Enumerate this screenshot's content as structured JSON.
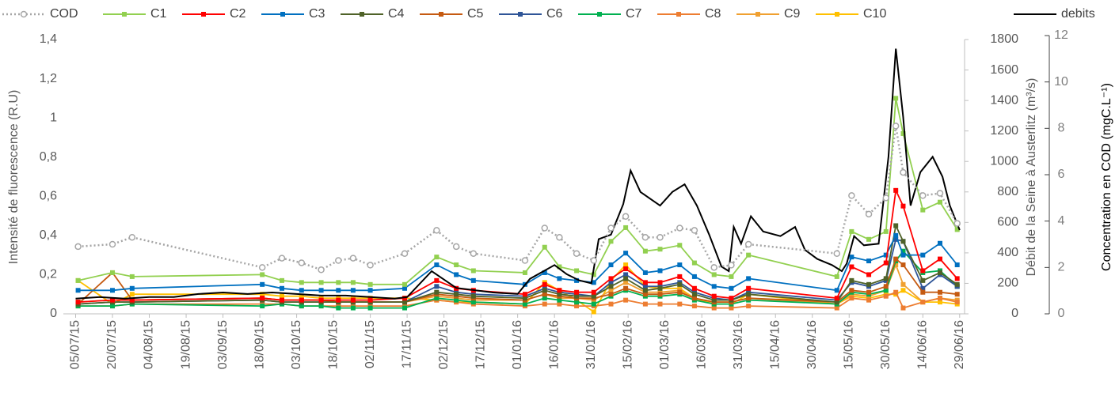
{
  "chart_data": {
    "type": "line",
    "y_label": "Intensité de fluorescence (R.U)",
    "y2_label": "Débit de la Seine à Austerlitz (m³/s)",
    "y3_label": "Concentration en COD (mgC.L⁻¹)",
    "legend": "top",
    "xlim": [
      "2015-06-30",
      "2016-07-01"
    ],
    "xticks": [
      {
        "value": "2015-07-05",
        "label": "05/07/15"
      },
      {
        "value": "2015-07-20",
        "label": "20/07/15"
      },
      {
        "value": "2015-08-04",
        "label": "04/08/15"
      },
      {
        "value": "2015-08-19",
        "label": "19/08/15"
      },
      {
        "value": "2015-09-03",
        "label": "03/09/15"
      },
      {
        "value": "2015-09-18",
        "label": "18/09/15"
      },
      {
        "value": "2015-10-03",
        "label": "03/10/15"
      },
      {
        "value": "2015-10-18",
        "label": "18/10/15"
      },
      {
        "value": "2015-11-02",
        "label": "02/11/15"
      },
      {
        "value": "2015-11-17",
        "label": "17/11/15"
      },
      {
        "value": "2015-12-02",
        "label": "02/12/15"
      },
      {
        "value": "2015-12-17",
        "label": "17/12/15"
      },
      {
        "value": "2016-01-01",
        "label": "01/01/16"
      },
      {
        "value": "2016-01-16",
        "label": "16/01/16"
      },
      {
        "value": "2016-01-31",
        "label": "31/01/16"
      },
      {
        "value": "2016-02-15",
        "label": "15/02/16"
      },
      {
        "value": "2016-03-01",
        "label": "01/03/16"
      },
      {
        "value": "2016-03-16",
        "label": "16/03/16"
      },
      {
        "value": "2016-03-31",
        "label": "31/03/16"
      },
      {
        "value": "2016-04-15",
        "label": "15/04/16"
      },
      {
        "value": "2016-04-30",
        "label": "30/04/16"
      },
      {
        "value": "2016-05-15",
        "label": "15/05/16"
      },
      {
        "value": "2016-05-30",
        "label": "30/05/16"
      },
      {
        "value": "2016-06-14",
        "label": "14/06/16"
      },
      {
        "value": "2016-06-29",
        "label": "29/06/16"
      }
    ],
    "ylim": [
      0,
      1.4
    ],
    "yticks": [
      0,
      {
        "value": 0.2,
        "label": "0,2"
      },
      {
        "value": 0.4,
        "label": "0,4"
      },
      {
        "value": 0.6,
        "label": "0,6"
      },
      {
        "value": 0.8,
        "label": "0,8"
      },
      1,
      {
        "value": 1.2,
        "label": "1,2"
      },
      {
        "value": 1.4,
        "label": "1,4"
      }
    ],
    "y2lim": [
      0,
      1800
    ],
    "y2ticks": [
      0,
      200,
      400,
      600,
      800,
      1000,
      1200,
      1400,
      1600,
      1800
    ],
    "y3lim": [
      0,
      12
    ],
    "y3ticks": [
      0,
      2,
      4,
      6,
      8,
      10,
      12
    ],
    "x": [
      "2015-07-06",
      "2015-07-20",
      "2015-07-28",
      "2015-09-19",
      "2015-09-27",
      "2015-10-05",
      "2015-10-13",
      "2015-10-20",
      "2015-10-26",
      "2015-11-02",
      "2015-11-16",
      "2015-11-29",
      "2015-12-07",
      "2015-12-14",
      "2016-01-04",
      "2016-01-12",
      "2016-01-18",
      "2016-01-25",
      "2016-02-01",
      "2016-02-08",
      "2016-02-14",
      "2016-02-22",
      "2016-02-28",
      "2016-03-07",
      "2016-03-13",
      "2016-03-21",
      "2016-03-28",
      "2016-04-04",
      "2016-05-10",
      "2016-05-16",
      "2016-05-23",
      "2016-05-30",
      "2016-06-03",
      "2016-06-06",
      "2016-06-14",
      "2016-06-21",
      "2016-06-28"
    ],
    "series": [
      {
        "name": "COD",
        "color": "#a6a6a6",
        "axis": "y3",
        "values": [
          2.9,
          3.0,
          3.3,
          2.0,
          2.4,
          2.2,
          1.9,
          2.3,
          2.4,
          2.1,
          2.6,
          3.6,
          2.9,
          2.6,
          2.3,
          3.7,
          3.3,
          2.6,
          2.3,
          3.7,
          4.2,
          3.3,
          3.3,
          3.7,
          3.6,
          2.0,
          2.1,
          3.0,
          2.6,
          5.1,
          4.3,
          5.0,
          8.1,
          6.1,
          5.1,
          5.2,
          3.9
        ]
      },
      {
        "name": "C1",
        "color": "#92d050",
        "values": [
          0.17,
          0.21,
          0.19,
          0.2,
          0.17,
          0.16,
          0.16,
          0.16,
          0.16,
          0.15,
          0.15,
          0.29,
          0.25,
          0.22,
          0.21,
          0.34,
          0.24,
          0.22,
          0.2,
          0.37,
          0.44,
          0.32,
          0.33,
          0.35,
          0.26,
          0.2,
          0.19,
          0.3,
          0.19,
          0.42,
          0.38,
          0.42,
          1.1,
          0.92,
          0.53,
          0.57,
          0.43
        ]
      },
      {
        "name": "C2",
        "color": "#ff0000",
        "values": [
          0.06,
          0.07,
          0.07,
          0.08,
          0.07,
          0.07,
          0.07,
          0.07,
          0.07,
          0.07,
          0.08,
          0.17,
          0.13,
          0.12,
          0.1,
          0.15,
          0.12,
          0.11,
          0.11,
          0.18,
          0.23,
          0.16,
          0.16,
          0.19,
          0.13,
          0.09,
          0.08,
          0.13,
          0.08,
          0.24,
          0.2,
          0.26,
          0.63,
          0.55,
          0.22,
          0.28,
          0.18
        ]
      },
      {
        "name": "C3",
        "color": "#0070c0",
        "values": [
          0.12,
          0.12,
          0.13,
          0.15,
          0.13,
          0.12,
          0.12,
          0.12,
          0.12,
          0.12,
          0.13,
          0.25,
          0.2,
          0.17,
          0.15,
          0.21,
          0.18,
          0.17,
          0.16,
          0.25,
          0.31,
          0.21,
          0.22,
          0.25,
          0.19,
          0.14,
          0.13,
          0.18,
          0.12,
          0.29,
          0.27,
          0.3,
          0.4,
          0.3,
          0.3,
          0.36,
          0.25
        ]
      },
      {
        "name": "C4",
        "color": "#4f6228",
        "values": [
          0.05,
          0.06,
          0.06,
          0.07,
          0.06,
          0.06,
          0.06,
          0.06,
          0.06,
          0.06,
          0.06,
          0.11,
          0.1,
          0.09,
          0.08,
          0.12,
          0.1,
          0.09,
          0.09,
          0.14,
          0.18,
          0.12,
          0.13,
          0.15,
          0.1,
          0.07,
          0.07,
          0.1,
          0.06,
          0.17,
          0.15,
          0.18,
          0.45,
          0.37,
          0.17,
          0.21,
          0.15
        ]
      },
      {
        "name": "C5",
        "color": "#c55a11",
        "values": [
          0.05,
          0.21,
          0.07,
          0.08,
          0.07,
          0.07,
          0.07,
          0.06,
          0.06,
          0.06,
          0.06,
          0.1,
          0.09,
          0.08,
          0.07,
          0.1,
          0.09,
          0.08,
          0.08,
          0.1,
          0.13,
          0.1,
          0.1,
          0.11,
          0.08,
          0.06,
          0.06,
          0.08,
          0.06,
          0.12,
          0.11,
          0.14,
          0.28,
          0.25,
          0.11,
          0.11,
          0.1
        ]
      },
      {
        "name": "C6",
        "color": "#2f5597",
        "values": [
          0.05,
          0.06,
          0.06,
          0.07,
          0.06,
          0.06,
          0.06,
          0.06,
          0.06,
          0.06,
          0.06,
          0.14,
          0.11,
          0.1,
          0.09,
          0.13,
          0.11,
          0.1,
          0.09,
          0.16,
          0.2,
          0.14,
          0.14,
          0.16,
          0.11,
          0.08,
          0.07,
          0.11,
          0.07,
          0.16,
          0.14,
          0.17,
          0.38,
          0.37,
          0.13,
          0.2,
          0.14
        ]
      },
      {
        "name": "C7",
        "color": "#00b050",
        "values": [
          0.04,
          0.04,
          0.05,
          0.04,
          0.05,
          0.04,
          0.04,
          0.03,
          0.03,
          0.03,
          0.03,
          0.08,
          0.07,
          0.06,
          0.05,
          0.08,
          0.07,
          0.06,
          0.05,
          0.09,
          0.12,
          0.09,
          0.09,
          0.1,
          0.07,
          0.05,
          0.05,
          0.07,
          0.05,
          0.11,
          0.1,
          0.12,
          0.27,
          0.32,
          0.21,
          0.22,
          0.14
        ]
      },
      {
        "name": "C8",
        "color": "#ed7d31",
        "values": [
          0.04,
          0.04,
          0.05,
          0.05,
          0.05,
          0.04,
          0.04,
          0.04,
          0.04,
          0.04,
          0.04,
          0.07,
          0.06,
          0.05,
          0.04,
          0.05,
          0.05,
          0.04,
          0.04,
          0.05,
          0.07,
          0.05,
          0.05,
          0.05,
          0.04,
          0.03,
          0.03,
          0.04,
          0.03,
          0.08,
          0.07,
          0.09,
          0.11,
          0.03,
          0.06,
          0.08,
          0.06
        ]
      },
      {
        "name": "C9",
        "color": "#f0a030",
        "values": [
          0.06,
          0.07,
          0.07,
          0.08,
          0.07,
          0.07,
          0.07,
          0.06,
          0.06,
          0.06,
          0.06,
          0.09,
          0.08,
          0.07,
          0.07,
          0.1,
          0.08,
          0.08,
          0.07,
          0.12,
          0.16,
          0.11,
          0.11,
          0.12,
          0.08,
          0.06,
          0.06,
          0.08,
          0.05,
          0.1,
          0.09,
          0.12,
          0.25,
          0.15,
          0.06,
          0.08,
          0.07
        ]
      },
      {
        "name": "C10",
        "color": "#ffc000",
        "values": [
          0.17,
          0.05,
          0.1,
          0.1,
          0.09,
          0.09,
          0.08,
          0.08,
          0.08,
          0.08,
          0.08,
          0.07,
          0.06,
          0.06,
          0.05,
          0.16,
          0.12,
          0.07,
          0.01,
          0.17,
          0.25,
          0.14,
          0.13,
          0.13,
          0.08,
          0.05,
          0.05,
          0.1,
          0.05,
          0.09,
          0.08,
          0.1,
          0.1,
          0.12,
          0.06,
          0.06,
          0.05
        ]
      },
      {
        "name": "debits",
        "color": "#000000",
        "axis": "y2",
        "x": [
          "2015-07-05",
          "2015-07-15",
          "2015-07-25",
          "2015-08-04",
          "2015-08-14",
          "2015-08-24",
          "2015-09-03",
          "2015-09-13",
          "2015-09-23",
          "2015-10-03",
          "2015-10-13",
          "2015-10-23",
          "2015-11-02",
          "2015-11-12",
          "2015-11-17",
          "2015-11-27",
          "2015-12-07",
          "2015-12-22",
          "2016-01-01",
          "2016-01-06",
          "2016-01-16",
          "2016-01-21",
          "2016-01-26",
          "2016-01-31",
          "2016-02-03",
          "2016-02-08",
          "2016-02-13",
          "2016-02-16",
          "2016-02-20",
          "2016-02-28",
          "2016-03-04",
          "2016-03-09",
          "2016-03-14",
          "2016-03-19",
          "2016-03-24",
          "2016-03-27",
          "2016-03-29",
          "2016-04-01",
          "2016-04-05",
          "2016-04-10",
          "2016-04-17",
          "2016-04-23",
          "2016-04-27",
          "2016-05-02",
          "2016-05-08",
          "2016-05-12",
          "2016-05-14",
          "2016-05-17",
          "2016-05-21",
          "2016-05-27",
          "2016-05-31",
          "2016-06-03",
          "2016-06-06",
          "2016-06-09",
          "2016-06-13",
          "2016-06-18",
          "2016-06-22",
          "2016-06-25",
          "2016-06-29"
        ],
        "values": [
          100,
          110,
          100,
          110,
          110,
          130,
          140,
          130,
          140,
          130,
          120,
          120,
          110,
          100,
          110,
          280,
          170,
          140,
          130,
          230,
          320,
          260,
          220,
          200,
          490,
          520,
          720,
          940,
          800,
          710,
          800,
          850,
          710,
          520,
          310,
          280,
          570,
          460,
          640,
          540,
          510,
          570,
          420,
          360,
          320,
          280,
          330,
          510,
          450,
          460,
          1030,
          1740,
          1290,
          710,
          930,
          1030,
          900,
          710,
          550
        ]
      }
    ]
  }
}
